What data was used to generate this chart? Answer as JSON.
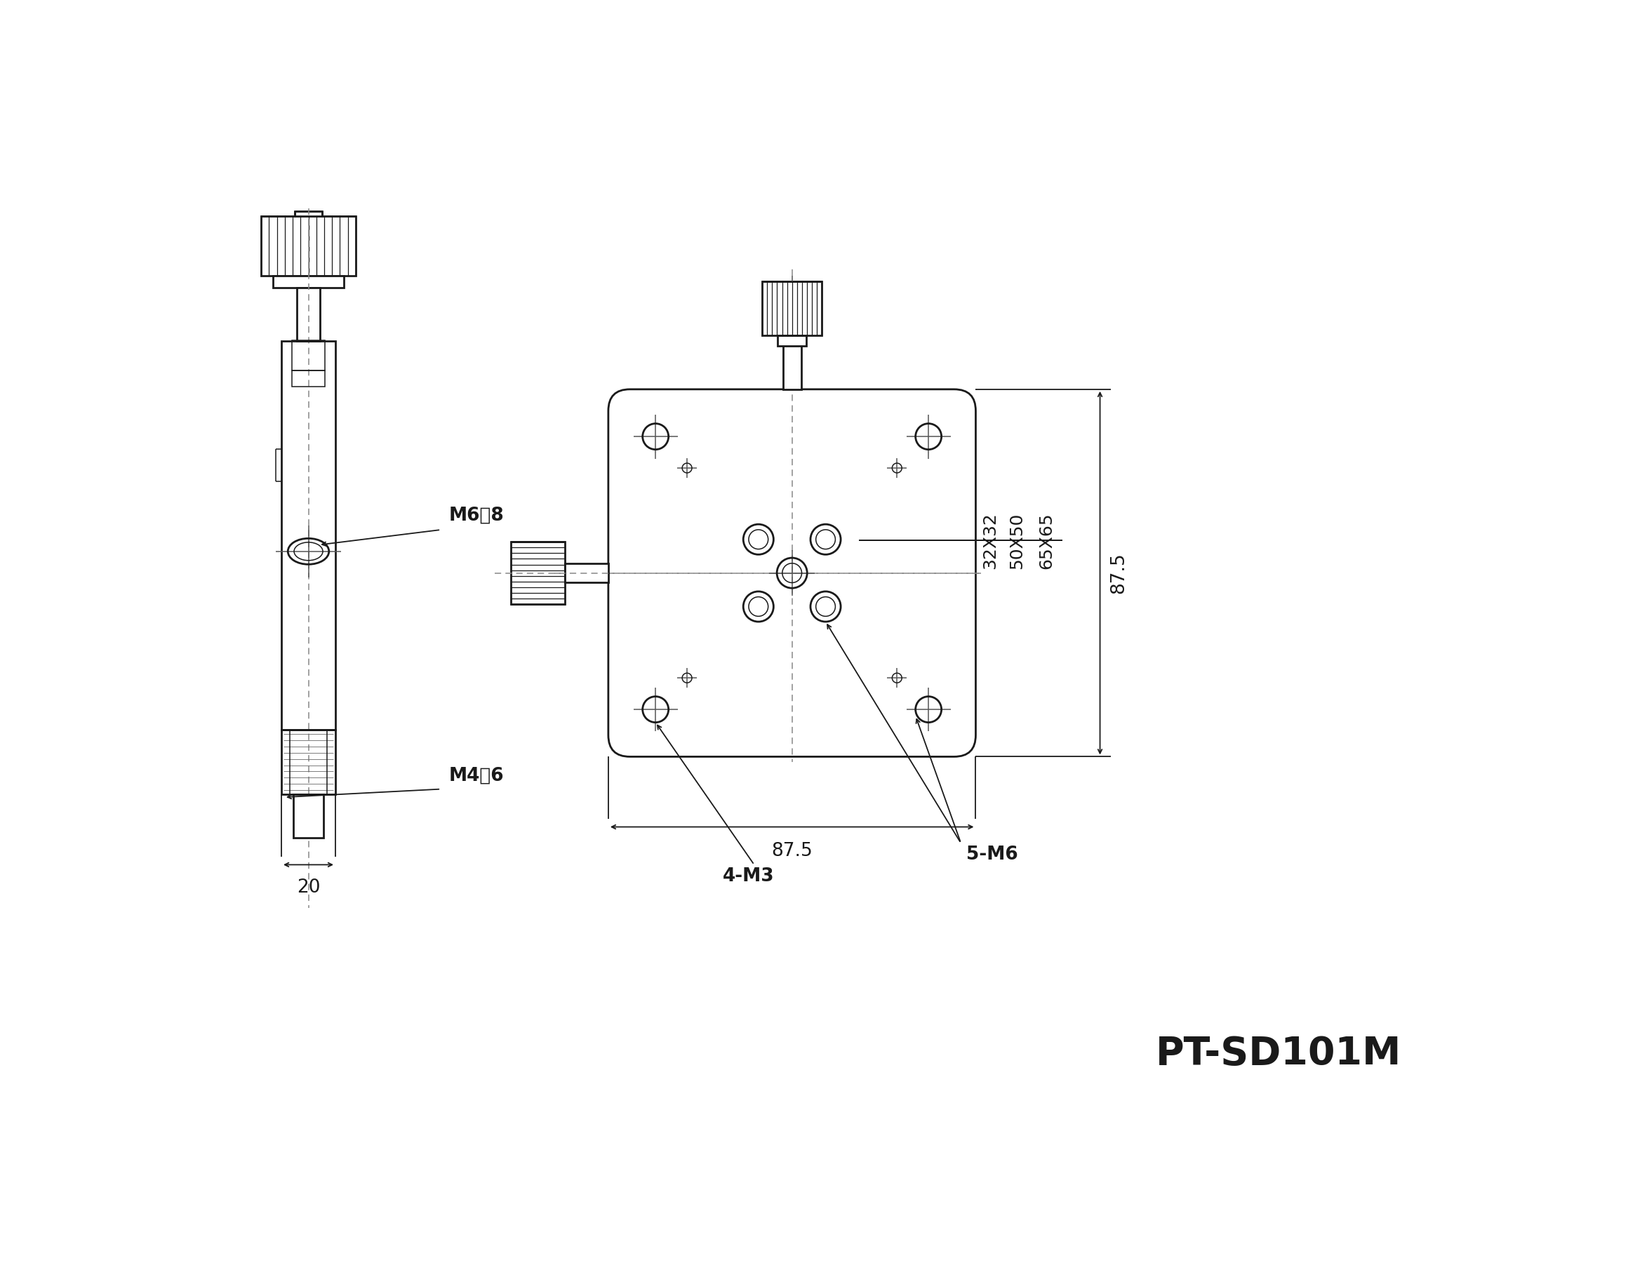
{
  "bg_color": "#ffffff",
  "line_color": "#1a1a1a",
  "title": "PT-SD101M",
  "title_fontsize": 40,
  "annotation_fontsize": 19,
  "dim_fontsize": 19,
  "annotations": {
    "M6_text": "M6淸8",
    "M4_text": "M4淸6",
    "dim_20": "20",
    "dim_87_5_h": "87.5",
    "dim_87_5_v": "87.5",
    "dim_32x32": "32X32",
    "dim_50x50": "50X50",
    "dim_65x65": "65X65",
    "label_4M3": "4-M3",
    "label_5M6": "5-M6"
  }
}
